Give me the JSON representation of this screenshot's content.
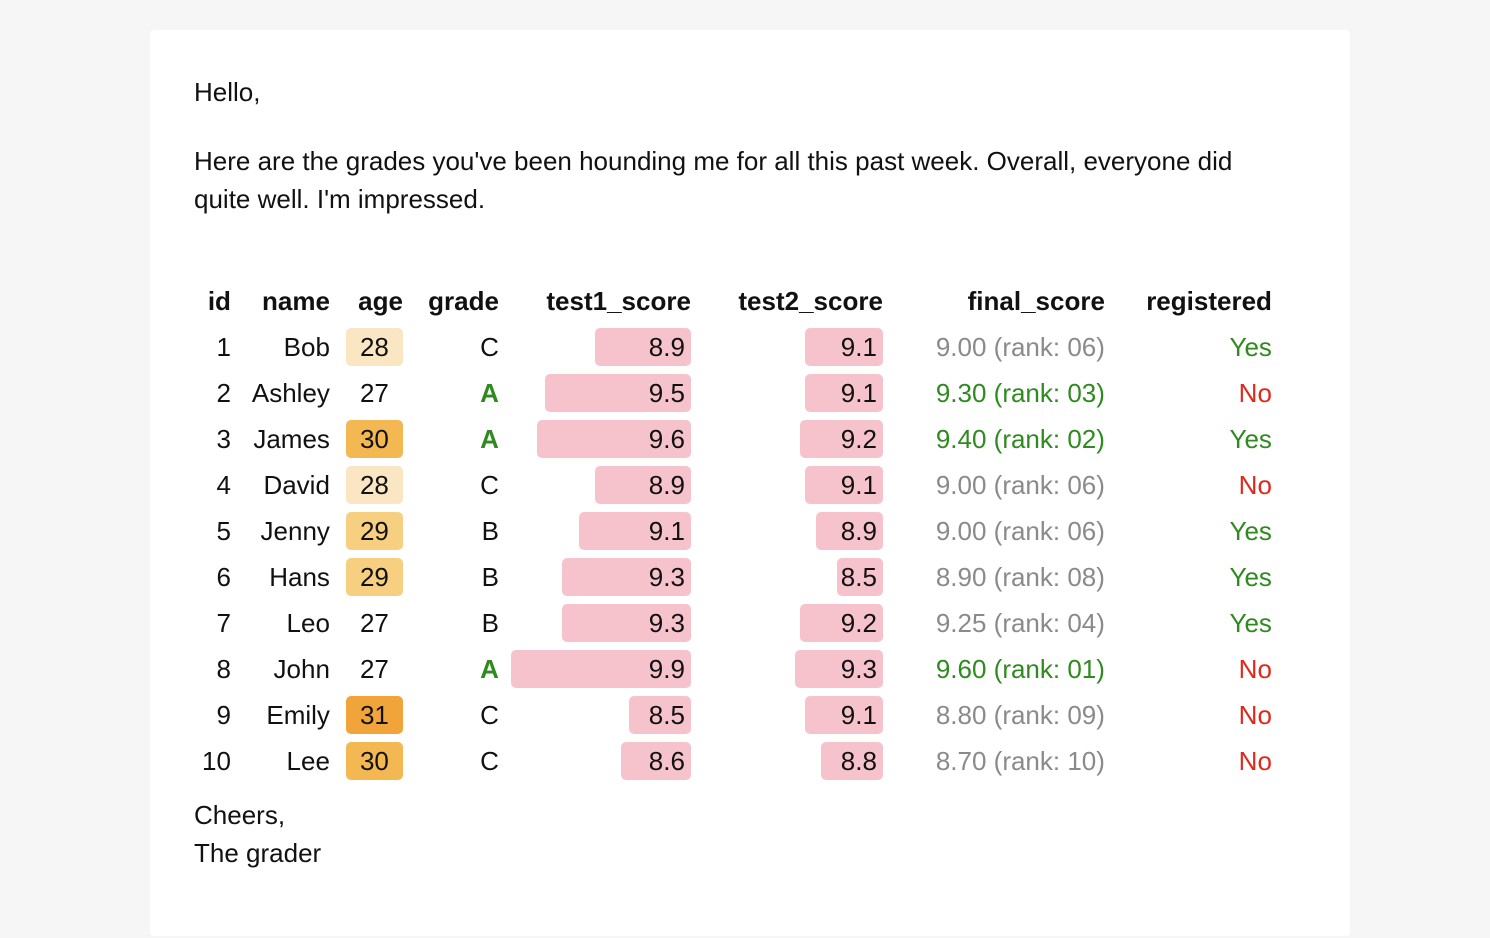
{
  "email": {
    "greeting": "Hello,",
    "intro": "Here are the grades you've been hounding me for all this past week. Overall, everyone did quite well. I'm impressed.",
    "signoff_line1": "Cheers,",
    "signoff_line2": "The grader"
  },
  "colors": {
    "grade_a": "#2f8a1f",
    "yes": "#2f8a1f",
    "no": "#e0291c",
    "final_top": "#2f8a1f",
    "final_other": "#8a8a8a",
    "score_bar": "#f6c3cc",
    "age_27": "#ffffff",
    "age_28": "#fbe6c4",
    "age_29": "#f7cf80",
    "age_30": "#f4b853",
    "age_31": "#f0a43a"
  },
  "table": {
    "headers": [
      "id",
      "name",
      "age",
      "grade",
      "test1_score",
      "test2_score",
      "final_score",
      "registered"
    ],
    "rows": [
      {
        "id": "1",
        "name": "Bob",
        "age": "28",
        "grade": "C",
        "test1_score": "8.9",
        "test2_score": "9.1",
        "final_score": "9.00 (rank: 06)",
        "registered": "Yes",
        "age_level": 28,
        "grade_highlight": false,
        "final_highlight": false
      },
      {
        "id": "2",
        "name": "Ashley",
        "age": "27",
        "grade": "A",
        "test1_score": "9.5",
        "test2_score": "9.1",
        "final_score": "9.30 (rank: 03)",
        "registered": "No",
        "age_level": 27,
        "grade_highlight": true,
        "final_highlight": true
      },
      {
        "id": "3",
        "name": "James",
        "age": "30",
        "grade": "A",
        "test1_score": "9.6",
        "test2_score": "9.2",
        "final_score": "9.40 (rank: 02)",
        "registered": "Yes",
        "age_level": 30,
        "grade_highlight": true,
        "final_highlight": true
      },
      {
        "id": "4",
        "name": "David",
        "age": "28",
        "grade": "C",
        "test1_score": "8.9",
        "test2_score": "9.1",
        "final_score": "9.00 (rank: 06)",
        "registered": "No",
        "age_level": 28,
        "grade_highlight": false,
        "final_highlight": false
      },
      {
        "id": "5",
        "name": "Jenny",
        "age": "29",
        "grade": "B",
        "test1_score": "9.1",
        "test2_score": "8.9",
        "final_score": "9.00 (rank: 06)",
        "registered": "Yes",
        "age_level": 29,
        "grade_highlight": false,
        "final_highlight": false
      },
      {
        "id": "6",
        "name": "Hans",
        "age": "29",
        "grade": "B",
        "test1_score": "9.3",
        "test2_score": "8.5",
        "final_score": "8.90 (rank: 08)",
        "registered": "Yes",
        "age_level": 29,
        "grade_highlight": false,
        "final_highlight": false
      },
      {
        "id": "7",
        "name": "Leo",
        "age": "27",
        "grade": "B",
        "test1_score": "9.3",
        "test2_score": "9.2",
        "final_score": "9.25 (rank: 04)",
        "registered": "Yes",
        "age_level": 27,
        "grade_highlight": false,
        "final_highlight": false
      },
      {
        "id": "8",
        "name": "John",
        "age": "27",
        "grade": "A",
        "test1_score": "9.9",
        "test2_score": "9.3",
        "final_score": "9.60 (rank: 01)",
        "registered": "No",
        "age_level": 27,
        "grade_highlight": true,
        "final_highlight": true
      },
      {
        "id": "9",
        "name": "Emily",
        "age": "31",
        "grade": "C",
        "test1_score": "8.5",
        "test2_score": "9.1",
        "final_score": "8.80 (rank: 09)",
        "registered": "No",
        "age_level": 31,
        "grade_highlight": false,
        "final_highlight": false
      },
      {
        "id": "10",
        "name": "Lee",
        "age": "30",
        "grade": "C",
        "test1_score": "8.6",
        "test2_score": "8.8",
        "final_score": "8.70 (rank: 10)",
        "registered": "No",
        "age_level": 30,
        "grade_highlight": false,
        "final_highlight": false
      }
    ]
  }
}
